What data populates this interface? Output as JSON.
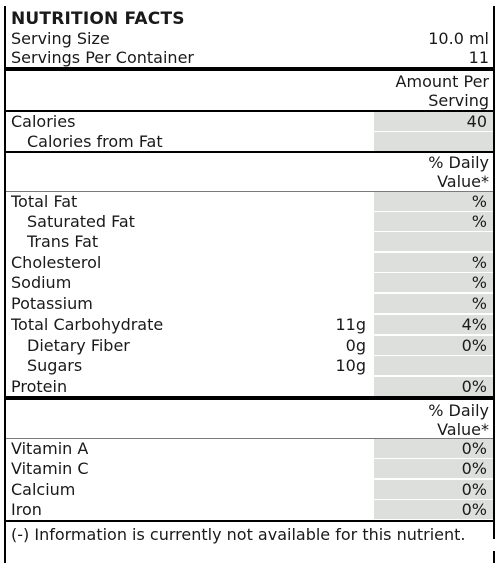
{
  "title": "NUTRITION FACTS",
  "serving": {
    "size_label": "Serving Size",
    "size_value": "10.0 ml",
    "per_container_label": "Servings Per Container",
    "per_container_value": "11"
  },
  "amount_header": {
    "line1": "Amount Per",
    "line2": "Serving"
  },
  "calories": {
    "label": "Calories",
    "value": "40",
    "from_fat_label": "Calories from Fat",
    "from_fat_value": ""
  },
  "daily_value_header": {
    "line1": "% Daily",
    "line2": "Value*"
  },
  "nutrients": [
    {
      "label": "Total Fat",
      "amount": "",
      "dv": "%"
    },
    {
      "label": "Saturated Fat",
      "amount": "",
      "dv": "%"
    },
    {
      "label": "Trans Fat",
      "amount": "",
      "dv": ""
    },
    {
      "label": "Cholesterol",
      "amount": "",
      "dv": "%"
    },
    {
      "label": "Sodium",
      "amount": "",
      "dv": "%"
    },
    {
      "label": "Potassium",
      "amount": "",
      "dv": "%"
    },
    {
      "label": "Total Carbohydrate",
      "amount": "11g",
      "dv": "4%"
    },
    {
      "label": "Dietary Fiber",
      "amount": "0g",
      "dv": "0%"
    },
    {
      "label": "Sugars",
      "amount": "10g",
      "dv": ""
    },
    {
      "label": "Protein",
      "amount": "",
      "dv": "0%"
    }
  ],
  "vitamin_header": {
    "line1": "% Daily",
    "line2": "Value*"
  },
  "vitamins": [
    {
      "label": "Vitamin A",
      "dv": "0%"
    },
    {
      "label": "Vitamin C",
      "dv": "0%"
    },
    {
      "label": "Calcium",
      "dv": "0%"
    },
    {
      "label": "Iron",
      "dv": "0%"
    }
  ],
  "footnote": "(-) Information is currently not available for this nutrient.",
  "colors": {
    "cell_background": "#dcdfdb",
    "rule": "#000000"
  }
}
